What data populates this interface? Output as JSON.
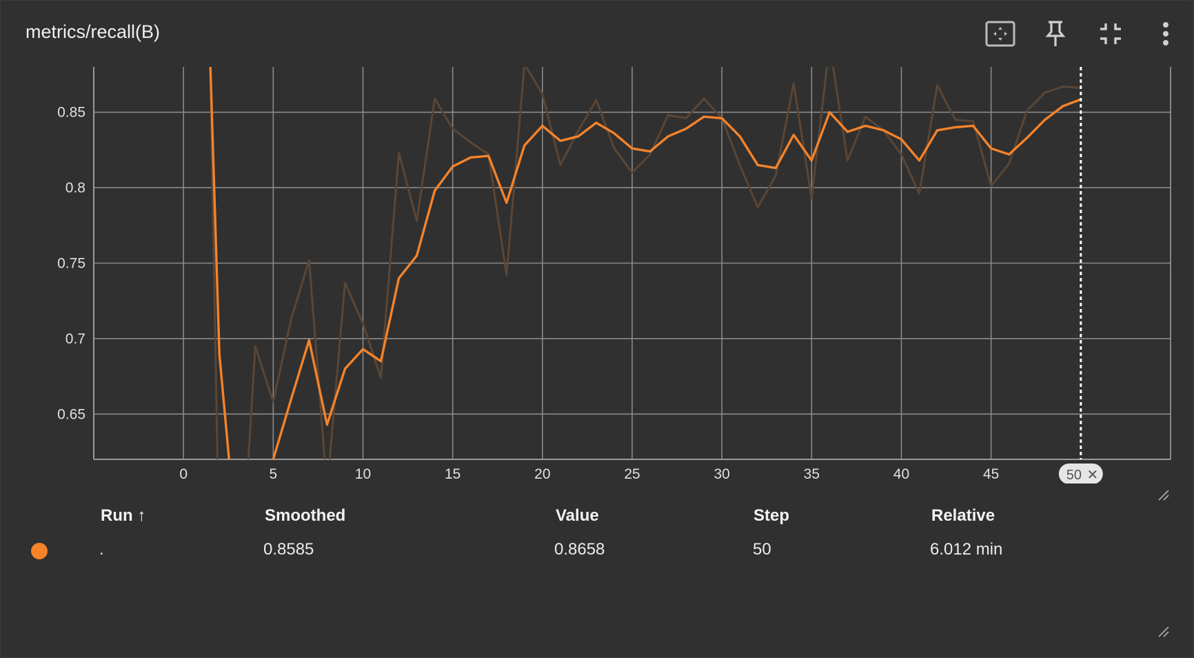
{
  "card": {
    "title": "metrics/recall(B)"
  },
  "toolbar": {
    "icons": [
      "fit-to-data-icon",
      "pin-icon",
      "collapse-icon",
      "more-vert-icon"
    ]
  },
  "colors": {
    "background": "#303030",
    "grid": "#8a8a8a",
    "smoothed": "#f5832a",
    "raw": "#5a4636",
    "cursor": "#ffffff"
  },
  "chart_data": {
    "type": "line",
    "xlabel": "",
    "ylabel": "",
    "xlim": [
      -5,
      55
    ],
    "ylim": [
      0.62,
      0.88
    ],
    "x_ticks": [
      0,
      5,
      10,
      15,
      20,
      25,
      30,
      35,
      40,
      45
    ],
    "y_ticks": [
      0.65,
      0.7,
      0.75,
      0.8,
      0.85
    ],
    "y_tick_labels": [
      "0.65",
      "0.7",
      "0.75",
      "0.8",
      "0.85"
    ],
    "grid": true,
    "cursor": {
      "step": 50,
      "label": "50"
    },
    "series": [
      {
        "role": "raw",
        "x": [
          1,
          1.5,
          2,
          3,
          4,
          5,
          6,
          7,
          8,
          9,
          10,
          11,
          12,
          13,
          14,
          15,
          16,
          17,
          18,
          19,
          20,
          21,
          22,
          23,
          24,
          25,
          26,
          27,
          28,
          29,
          30,
          31,
          32,
          33,
          34,
          35,
          36,
          37,
          38,
          39,
          40,
          41,
          42,
          43,
          44,
          45,
          46,
          47,
          48,
          49,
          50
        ],
        "values": [
          0.95,
          0.88,
          0.55,
          0.5,
          0.695,
          0.658,
          0.713,
          0.752,
          0.6,
          0.737,
          0.71,
          0.674,
          0.823,
          0.778,
          0.859,
          0.839,
          0.83,
          0.822,
          0.742,
          0.882,
          0.862,
          0.815,
          0.838,
          0.858,
          0.826,
          0.81,
          0.822,
          0.848,
          0.846,
          0.859,
          0.846,
          0.815,
          0.787,
          0.808,
          0.869,
          0.793,
          0.895,
          0.818,
          0.847,
          0.838,
          0.822,
          0.796,
          0.868,
          0.845,
          0.844,
          0.801,
          0.816,
          0.851,
          0.863,
          0.867,
          0.866
        ]
      },
      {
        "role": "smoothed",
        "x": [
          1,
          1.5,
          2,
          3,
          4,
          5,
          6,
          7,
          8,
          9,
          10,
          11,
          12,
          13,
          14,
          15,
          16,
          17,
          18,
          19,
          20,
          21,
          22,
          23,
          24,
          25,
          26,
          27,
          28,
          29,
          30,
          31,
          32,
          33,
          34,
          35,
          36,
          37,
          38,
          39,
          40,
          41,
          42,
          43,
          44,
          45,
          46,
          47,
          48,
          49,
          50
        ],
        "values": [
          0.95,
          0.88,
          0.69,
          0.56,
          0.59,
          0.62,
          0.66,
          0.699,
          0.643,
          0.68,
          0.693,
          0.685,
          0.74,
          0.755,
          0.798,
          0.814,
          0.82,
          0.821,
          0.79,
          0.828,
          0.841,
          0.831,
          0.834,
          0.843,
          0.836,
          0.826,
          0.824,
          0.834,
          0.839,
          0.847,
          0.846,
          0.834,
          0.815,
          0.813,
          0.835,
          0.818,
          0.85,
          0.837,
          0.841,
          0.838,
          0.832,
          0.818,
          0.838,
          0.84,
          0.841,
          0.826,
          0.822,
          0.833,
          0.845,
          0.854,
          0.8585
        ]
      }
    ]
  },
  "table": {
    "headers": {
      "run": "Run ↑",
      "smoothed": "Smoothed",
      "value": "Value",
      "step": "Step",
      "relative": "Relative"
    },
    "row": {
      "run": ".",
      "smoothed": "0.8585",
      "value": "0.8658",
      "step": "50",
      "relative": "6.012 min"
    }
  }
}
